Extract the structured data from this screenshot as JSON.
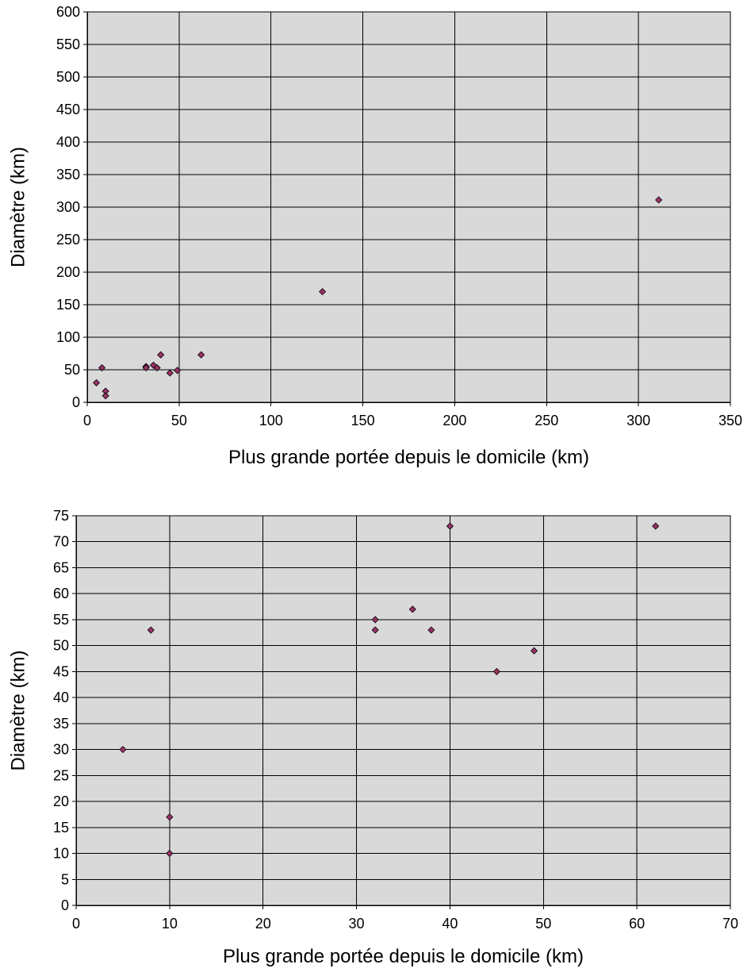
{
  "colors": {
    "plot_background": "#d9d9d9",
    "grid": "#000000",
    "marker": "#993366"
  },
  "chart_data": [
    {
      "type": "scatter",
      "xlabel": "Plus grande portée depuis le domicile (km)",
      "ylabel": "Diamètre (km)",
      "xlim": [
        0,
        350
      ],
      "ylim": [
        0,
        600
      ],
      "xticks": [
        0,
        50,
        100,
        150,
        200,
        250,
        300,
        350
      ],
      "yticks": [
        0,
        50,
        100,
        150,
        200,
        250,
        300,
        350,
        400,
        450,
        500,
        550,
        600
      ],
      "grid": true,
      "marker": "diamond",
      "points": [
        {
          "x": 5,
          "y": 30
        },
        {
          "x": 8,
          "y": 53
        },
        {
          "x": 10,
          "y": 17
        },
        {
          "x": 10,
          "y": 10
        },
        {
          "x": 32,
          "y": 55
        },
        {
          "x": 32,
          "y": 53
        },
        {
          "x": 36,
          "y": 57
        },
        {
          "x": 38,
          "y": 53
        },
        {
          "x": 40,
          "y": 73
        },
        {
          "x": 45,
          "y": 45
        },
        {
          "x": 49,
          "y": 49
        },
        {
          "x": 62,
          "y": 73
        },
        {
          "x": 128,
          "y": 170
        },
        {
          "x": 311,
          "y": 311
        }
      ]
    },
    {
      "type": "scatter",
      "xlabel": "Plus grande portée depuis le domicile (km)",
      "ylabel": "Diamètre (km)",
      "xlim": [
        0,
        70
      ],
      "ylim": [
        0,
        75
      ],
      "xticks": [
        0,
        10,
        20,
        30,
        40,
        50,
        60,
        70
      ],
      "yticks": [
        0,
        5,
        10,
        15,
        20,
        25,
        30,
        35,
        40,
        45,
        50,
        55,
        60,
        65,
        70,
        75
      ],
      "grid": true,
      "marker": "diamond",
      "points": [
        {
          "x": 5,
          "y": 30
        },
        {
          "x": 8,
          "y": 53
        },
        {
          "x": 10,
          "y": 17
        },
        {
          "x": 10,
          "y": 10
        },
        {
          "x": 32,
          "y": 55
        },
        {
          "x": 32,
          "y": 53
        },
        {
          "x": 36,
          "y": 57
        },
        {
          "x": 38,
          "y": 53
        },
        {
          "x": 40,
          "y": 73
        },
        {
          "x": 45,
          "y": 45
        },
        {
          "x": 49,
          "y": 49
        },
        {
          "x": 62,
          "y": 73
        }
      ]
    }
  ]
}
